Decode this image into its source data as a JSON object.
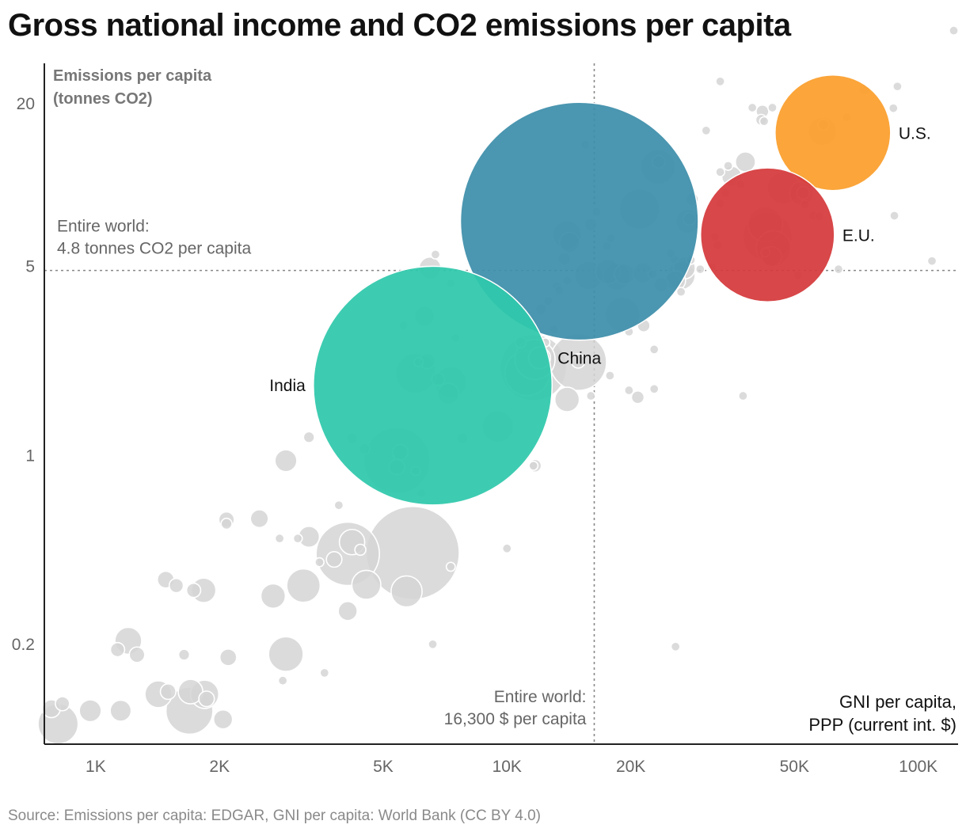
{
  "title": "Gross national income and CO2 emissions per capita",
  "source": "Source: Emissions per capita: EDGAR, GNI per capita: World Bank (CC BY 4.0)",
  "chart_data": {
    "type": "scatter",
    "x_scale": "log",
    "y_scale": "log",
    "xlabel": [
      "GNI per capita,",
      "PPP (current int. $)"
    ],
    "ylabel": [
      "Emissions per capita",
      "(tonnes CO2)"
    ],
    "xlim": [
      750,
      125000
    ],
    "ylim": [
      0.085,
      28
    ],
    "x_ticks": [
      {
        "value": 1000,
        "label": "1K"
      },
      {
        "value": 2000,
        "label": "2K"
      },
      {
        "value": 5000,
        "label": "5K"
      },
      {
        "value": 10000,
        "label": "10K"
      },
      {
        "value": 20000,
        "label": "20K"
      },
      {
        "value": 50000,
        "label": "50K"
      },
      {
        "value": 100000,
        "label": "100K"
      }
    ],
    "y_ticks": [
      {
        "value": 20,
        "label": "20"
      },
      {
        "value": 5,
        "label": "5"
      },
      {
        "value": 1,
        "label": "1"
      },
      {
        "value": 0.2,
        "label": "0.2"
      }
    ],
    "reference": {
      "world_emissions": 4.8,
      "world_gni": 16300,
      "world_emissions_label": [
        "Entire world:",
        "4.8 tonnes CO2 per capita"
      ],
      "world_gni_label": [
        "Entire world:",
        "16,300 $ per capita"
      ]
    },
    "highlights": [
      {
        "name": "China",
        "label": "China",
        "gni": 15000,
        "emissions": 7.3,
        "population_m": 1410,
        "color": "#3d8eaa"
      },
      {
        "name": "India",
        "label": "India",
        "gni": 6600,
        "emissions": 1.8,
        "population_m": 1420,
        "color": "#2ec8ab"
      },
      {
        "name": "U.S.",
        "label": "U.S.",
        "gni": 62000,
        "emissions": 15.5,
        "population_m": 333,
        "color": "#fb9e2b"
      },
      {
        "name": "E.U.",
        "label": "E.U.",
        "gni": 43000,
        "emissions": 6.5,
        "population_m": 447,
        "color": "#d5393b"
      }
    ],
    "countries": [
      {
        "gni": 810,
        "emissions": 0.101,
        "population_m": 40
      },
      {
        "gni": 780,
        "emissions": 0.115,
        "population_m": 8
      },
      {
        "gni": 830,
        "emissions": 0.12,
        "population_m": 5
      },
      {
        "gni": 970,
        "emissions": 0.113,
        "population_m": 12
      },
      {
        "gni": 1150,
        "emissions": 0.113,
        "population_m": 11
      },
      {
        "gni": 1200,
        "emissions": 0.205,
        "population_m": 18
      },
      {
        "gni": 1130,
        "emissions": 0.19,
        "population_m": 5
      },
      {
        "gni": 1260,
        "emissions": 0.182,
        "population_m": 6
      },
      {
        "gni": 1420,
        "emissions": 0.13,
        "population_m": 18
      },
      {
        "gni": 1500,
        "emissions": 0.133,
        "population_m": 6
      },
      {
        "gni": 1640,
        "emissions": 0.182,
        "population_m": 3
      },
      {
        "gni": 1690,
        "emissions": 0.113,
        "population_m": 55
      },
      {
        "gni": 1700,
        "emissions": 0.133,
        "population_m": 15
      },
      {
        "gni": 1840,
        "emissions": 0.13,
        "population_m": 20
      },
      {
        "gni": 1860,
        "emissions": 0.125,
        "population_m": 6
      },
      {
        "gni": 2040,
        "emissions": 0.105,
        "population_m": 9
      },
      {
        "gni": 2100,
        "emissions": 0.178,
        "population_m": 7
      },
      {
        "gni": 1480,
        "emissions": 0.345,
        "population_m": 7
      },
      {
        "gni": 1570,
        "emissions": 0.328,
        "population_m": 5
      },
      {
        "gni": 1730,
        "emissions": 0.315,
        "population_m": 5
      },
      {
        "gni": 1830,
        "emissions": 0.315,
        "population_m": 15
      },
      {
        "gni": 2700,
        "emissions": 0.3,
        "population_m": 15
      },
      {
        "gni": 2900,
        "emissions": 0.183,
        "population_m": 30
      },
      {
        "gni": 2850,
        "emissions": 0.146,
        "population_m": 2
      },
      {
        "gni": 3600,
        "emissions": 0.156,
        "population_m": 2
      },
      {
        "gni": 2080,
        "emissions": 0.575,
        "population_m": 6
      },
      {
        "gni": 2080,
        "emissions": 0.555,
        "population_m": 3
      },
      {
        "gni": 2500,
        "emissions": 0.58,
        "population_m": 8
      },
      {
        "gni": 2800,
        "emissions": 0.49,
        "population_m": 2
      },
      {
        "gni": 3100,
        "emissions": 0.49,
        "population_m": 2
      },
      {
        "gni": 3300,
        "emissions": 0.497,
        "population_m": 11
      },
      {
        "gni": 3200,
        "emissions": 0.328,
        "population_m": 28
      },
      {
        "gni": 3800,
        "emissions": 0.41,
        "population_m": 6
      },
      {
        "gni": 3500,
        "emissions": 0.4,
        "population_m": 2
      },
      {
        "gni": 4100,
        "emissions": 0.43,
        "population_m": 100
      },
      {
        "gni": 4200,
        "emissions": 0.475,
        "population_m": 16
      },
      {
        "gni": 4400,
        "emissions": 0.445,
        "population_m": 3
      },
      {
        "gni": 4550,
        "emissions": 0.33,
        "population_m": 21
      },
      {
        "gni": 4100,
        "emissions": 0.264,
        "population_m": 9
      },
      {
        "gni": 5700,
        "emissions": 0.312,
        "population_m": 24
      },
      {
        "gni": 5900,
        "emissions": 0.433,
        "population_m": 216
      },
      {
        "gni": 6600,
        "emissions": 0.199,
        "population_m": 2
      },
      {
        "gni": 7300,
        "emissions": 0.385,
        "population_m": 2
      },
      {
        "gni": 3900,
        "emissions": 0.65,
        "population_m": 2
      },
      {
        "gni": 2900,
        "emissions": 0.95,
        "population_m": 12
      },
      {
        "gni": 3300,
        "emissions": 1.16,
        "population_m": 3
      },
      {
        "gni": 4200,
        "emissions": 1.15,
        "population_m": 3
      },
      {
        "gni": 4500,
        "emissions": 1.05,
        "population_m": 3
      },
      {
        "gni": 6200,
        "emissions": 0.72,
        "population_m": 2
      },
      {
        "gni": 5400,
        "emissions": 0.95,
        "population_m": 110
      },
      {
        "gni": 5500,
        "emissions": 1.02,
        "population_m": 6
      },
      {
        "gni": 5400,
        "emissions": 0.9,
        "population_m": 6
      },
      {
        "gni": 6000,
        "emissions": 0.87,
        "population_m": 2
      },
      {
        "gni": 7800,
        "emissions": 1.15,
        "population_m": 3
      },
      {
        "gni": 9500,
        "emissions": 1.27,
        "population_m": 25
      },
      {
        "gni": 11700,
        "emissions": 0.91,
        "population_m": 4
      },
      {
        "gni": 11600,
        "emissions": 0.91,
        "population_m": 2
      },
      {
        "gni": 10000,
        "emissions": 0.45,
        "population_m": 2
      },
      {
        "gni": 6300,
        "emissions": 3.25,
        "population_m": 10
      },
      {
        "gni": 6400,
        "emissions": 2.22,
        "population_m": 6
      },
      {
        "gni": 6800,
        "emissions": 1.9,
        "population_m": 4
      },
      {
        "gni": 7200,
        "emissions": 1.68,
        "population_m": 11
      },
      {
        "gni": 7500,
        "emissions": 2.7,
        "population_m": 2
      },
      {
        "gni": 6500,
        "emissions": 4.9,
        "population_m": 12
      },
      {
        "gni": 7300,
        "emissions": 4.3,
        "population_m": 2
      },
      {
        "gni": 10800,
        "emissions": 2.6,
        "population_m": 3
      },
      {
        "gni": 11200,
        "emissions": 2.0,
        "population_m": 50
      },
      {
        "gni": 11600,
        "emissions": 2.1,
        "population_m": 110
      },
      {
        "gni": 11700,
        "emissions": 2.25,
        "population_m": 40
      },
      {
        "gni": 12000,
        "emissions": 2.28,
        "population_m": 12
      },
      {
        "gni": 12400,
        "emissions": 2.6,
        "population_m": 2
      },
      {
        "gni": 13000,
        "emissions": 2.9,
        "population_m": 2
      },
      {
        "gni": 14000,
        "emissions": 1.6,
        "population_m": 15
      },
      {
        "gni": 14900,
        "emissions": 2.2,
        "population_m": 80
      },
      {
        "gni": 14900,
        "emissions": 2.22,
        "population_m": 5
      },
      {
        "gni": 16000,
        "emissions": 1.65,
        "population_m": 2
      },
      {
        "gni": 17800,
        "emissions": 1.96,
        "population_m": 2
      },
      {
        "gni": 19100,
        "emissions": 3.3,
        "population_m": 30
      },
      {
        "gni": 19800,
        "emissions": 2.85,
        "population_m": 2
      },
      {
        "gni": 21500,
        "emissions": 3.0,
        "population_m": 4
      },
      {
        "gni": 20800,
        "emissions": 1.63,
        "population_m": 4
      },
      {
        "gni": 19800,
        "emissions": 1.73,
        "population_m": 2
      },
      {
        "gni": 22800,
        "emissions": 1.75,
        "population_m": 2
      },
      {
        "gni": 22800,
        "emissions": 2.45,
        "population_m": 2
      },
      {
        "gni": 12100,
        "emissions": 3.45,
        "population_m": 3
      },
      {
        "gni": 12600,
        "emissions": 3.7,
        "population_m": 2
      },
      {
        "gni": 13200,
        "emissions": 4.2,
        "population_m": 2
      },
      {
        "gni": 13400,
        "emissions": 4.05,
        "population_m": 2
      },
      {
        "gni": 14000,
        "emissions": 4.4,
        "population_m": 2
      },
      {
        "gni": 15800,
        "emissions": 4.6,
        "population_m": 20
      },
      {
        "gni": 17600,
        "emissions": 4.75,
        "population_m": 15
      },
      {
        "gni": 18500,
        "emissions": 4.55,
        "population_m": 18
      },
      {
        "gni": 19300,
        "emissions": 4.65,
        "population_m": 10
      },
      {
        "gni": 21400,
        "emissions": 4.7,
        "population_m": 10
      },
      {
        "gni": 22600,
        "emissions": 4.65,
        "population_m": 2
      },
      {
        "gni": 23700,
        "emissions": 4.25,
        "population_m": 5
      },
      {
        "gni": 25700,
        "emissions": 4.4,
        "population_m": 10
      },
      {
        "gni": 26500,
        "emissions": 4.6,
        "population_m": 20
      },
      {
        "gni": 27000,
        "emissions": 4.9,
        "population_m": 12
      },
      {
        "gni": 25500,
        "emissions": 5.3,
        "population_m": 2
      },
      {
        "gni": 25000,
        "emissions": 5.55,
        "population_m": 2
      },
      {
        "gni": 26500,
        "emissions": 4.0,
        "population_m": 2
      },
      {
        "gni": 28000,
        "emissions": 5.25,
        "population_m": 2
      },
      {
        "gni": 29500,
        "emissions": 4.85,
        "population_m": 2
      },
      {
        "gni": 31500,
        "emissions": 4.95,
        "population_m": 2
      },
      {
        "gni": 27500,
        "emissions": 7.3,
        "population_m": 14
      },
      {
        "gni": 27800,
        "emissions": 7.45,
        "population_m": 4
      },
      {
        "gni": 28200,
        "emissions": 8.8,
        "population_m": 4
      },
      {
        "gni": 32000,
        "emissions": 6.4,
        "population_m": 2
      },
      {
        "gni": 32500,
        "emissions": 5.95,
        "population_m": 2
      },
      {
        "gni": 33000,
        "emissions": 8.5,
        "population_m": 2
      },
      {
        "gni": 35200,
        "emissions": 10.7,
        "population_m": 10
      },
      {
        "gni": 34000,
        "emissions": 9.3,
        "population_m": 2
      },
      {
        "gni": 34500,
        "emissions": 11.7,
        "population_m": 2
      },
      {
        "gni": 33000,
        "emissions": 11.1,
        "population_m": 2
      },
      {
        "gni": 30500,
        "emissions": 15.8,
        "population_m": 2
      },
      {
        "gni": 33000,
        "emissions": 24.0,
        "population_m": 2
      },
      {
        "gni": 23300,
        "emissions": 11.6,
        "population_m": 30
      },
      {
        "gni": 23400,
        "emissions": 12.1,
        "population_m": 4
      },
      {
        "gni": 15500,
        "emissions": 14.0,
        "population_m": 2
      },
      {
        "gni": 16500,
        "emissions": 7.9,
        "population_m": 2
      },
      {
        "gni": 39500,
        "emissions": 19.2,
        "population_m": 2
      },
      {
        "gni": 41800,
        "emissions": 18.6,
        "population_m": 4
      },
      {
        "gni": 41500,
        "emissions": 17.3,
        "population_m": 3
      },
      {
        "gni": 42200,
        "emissions": 17.1,
        "population_m": 2
      },
      {
        "gni": 44200,
        "emissions": 19.2,
        "population_m": 2
      },
      {
        "gni": 47000,
        "emissions": 9.7,
        "population_m": 26
      },
      {
        "gni": 52000,
        "emissions": 9.25,
        "population_m": 14
      },
      {
        "gni": 52500,
        "emissions": 9.3,
        "population_m": 4
      },
      {
        "gni": 53000,
        "emissions": 8.4,
        "population_m": 2
      },
      {
        "gni": 55500,
        "emissions": 7.65,
        "population_m": 2
      },
      {
        "gni": 57500,
        "emissions": 7.6,
        "population_m": 2
      },
      {
        "gni": 44000,
        "emissions": 5.4,
        "population_m": 10
      },
      {
        "gni": 51000,
        "emissions": 4.6,
        "population_m": 2
      },
      {
        "gni": 64000,
        "emissions": 4.85,
        "population_m": 2
      },
      {
        "gni": 42500,
        "emissions": 5.6,
        "population_m": 2
      },
      {
        "gni": 37000,
        "emissions": 10.0,
        "population_m": 2
      },
      {
        "gni": 38000,
        "emissions": 12.1,
        "population_m": 10
      },
      {
        "gni": 58800,
        "emissions": 16.6,
        "population_m": 3
      },
      {
        "gni": 67000,
        "emissions": 17.7,
        "population_m": 2
      },
      {
        "gni": 74000,
        "emissions": 22.4,
        "population_m": 3
      },
      {
        "gni": 89000,
        "emissions": 23.0,
        "population_m": 2
      },
      {
        "gni": 87000,
        "emissions": 19.1,
        "population_m": 2
      },
      {
        "gni": 87500,
        "emissions": 7.65,
        "population_m": 2
      },
      {
        "gni": 108000,
        "emissions": 5.2,
        "population_m": 2
      },
      {
        "gni": 122000,
        "emissions": 37.0,
        "population_m": 2
      },
      {
        "gni": 43000,
        "emissions": 6.4,
        "population_m": 60
      },
      {
        "gni": 42500,
        "emissions": 7.1,
        "population_m": 30
      },
      {
        "gni": 44500,
        "emissions": 5.8,
        "population_m": 30
      },
      {
        "gni": 58500,
        "emissions": 15.7,
        "population_m": 20
      },
      {
        "gni": 14000,
        "emissions": 6.5,
        "population_m": 20
      },
      {
        "gni": 14200,
        "emissions": 6.1,
        "population_m": 10
      },
      {
        "gni": 13800,
        "emissions": 5.3,
        "population_m": 4
      },
      {
        "gni": 16000,
        "emissions": 7.1,
        "population_m": 4
      },
      {
        "gni": 17500,
        "emissions": 5.9,
        "population_m": 2
      },
      {
        "gni": 17900,
        "emissions": 6.3,
        "population_m": 2
      },
      {
        "gni": 21000,
        "emissions": 8.1,
        "population_m": 40
      },
      {
        "gni": 6000,
        "emissions": 2.0,
        "population_m": 40
      },
      {
        "gni": 7300,
        "emissions": 1.85,
        "population_m": 25
      },
      {
        "gni": 6100,
        "emissions": 2.2,
        "population_m": 2
      },
      {
        "gni": 5600,
        "emissions": 3.0,
        "population_m": 2
      },
      {
        "gni": 25700,
        "emissions": 0.195,
        "population_m": 2
      },
      {
        "gni": 37500,
        "emissions": 1.65,
        "population_m": 2
      },
      {
        "gni": 6700,
        "emissions": 5.5,
        "population_m": 2
      }
    ]
  }
}
